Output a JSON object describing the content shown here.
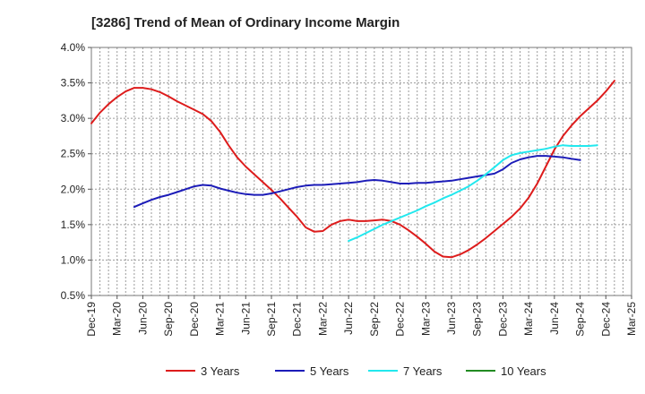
{
  "chart_data": {
    "type": "line",
    "title": "[3286]  Trend of Mean of Ordinary Income Margin",
    "xlabel": "",
    "ylabel": "",
    "ylim": [
      0.5,
      4.0
    ],
    "y_ticks": [
      "0.5%",
      "1.0%",
      "1.5%",
      "2.0%",
      "2.5%",
      "3.0%",
      "3.5%",
      "4.0%"
    ],
    "y_tick_values": [
      0.5,
      1.0,
      1.5,
      2.0,
      2.5,
      3.0,
      3.5,
      4.0
    ],
    "x_ticks": [
      "Dec-19",
      "Mar-20",
      "Jun-20",
      "Sep-20",
      "Dec-20",
      "Mar-21",
      "Jun-21",
      "Sep-21",
      "Dec-21",
      "Mar-22",
      "Jun-22",
      "Sep-22",
      "Dec-22",
      "Mar-23",
      "Jun-23",
      "Sep-23",
      "Dec-23",
      "Mar-24",
      "Jun-24",
      "Sep-24",
      "Dec-24",
      "Mar-25"
    ],
    "grid": true,
    "legend_position": "bottom",
    "series": [
      {
        "name": "3 Years",
        "color": "#dd1c1c",
        "start_index": 0,
        "values": [
          2.93,
          3.08,
          3.2,
          3.3,
          3.38,
          3.43,
          3.43,
          3.41,
          3.37,
          3.31,
          3.24,
          3.18,
          3.12,
          3.06,
          2.96,
          2.81,
          2.62,
          2.45,
          2.32,
          2.21,
          2.1,
          1.99,
          1.87,
          1.74,
          1.61,
          1.46,
          1.4,
          1.41,
          1.5,
          1.55,
          1.57,
          1.55,
          1.55,
          1.56,
          1.57,
          1.55,
          1.5,
          1.42,
          1.33,
          1.23,
          1.12,
          1.05,
          1.04,
          1.08,
          1.14,
          1.22,
          1.31,
          1.41,
          1.51,
          1.61,
          1.73,
          1.88,
          2.08,
          2.32,
          2.56,
          2.75,
          2.9,
          3.03,
          3.14,
          3.25,
          3.38,
          3.53
        ]
      },
      {
        "name": "5 Years",
        "color": "#1c1cb8",
        "start_index": 5,
        "values": [
          1.75,
          1.8,
          1.85,
          1.89,
          1.92,
          1.96,
          2.0,
          2.04,
          2.06,
          2.05,
          2.01,
          1.98,
          1.95,
          1.93,
          1.92,
          1.92,
          1.94,
          1.97,
          2.0,
          2.03,
          2.05,
          2.06,
          2.06,
          2.07,
          2.08,
          2.09,
          2.1,
          2.12,
          2.13,
          2.12,
          2.1,
          2.08,
          2.08,
          2.09,
          2.09,
          2.1,
          2.11,
          2.12,
          2.14,
          2.16,
          2.18,
          2.2,
          2.22,
          2.28,
          2.37,
          2.42,
          2.45,
          2.47,
          2.47,
          2.46,
          2.45,
          2.43,
          2.41
        ]
      },
      {
        "name": "7 Years",
        "color": "#22e8ee",
        "start_index": 30,
        "values": [
          1.27,
          1.32,
          1.38,
          1.44,
          1.5,
          1.55,
          1.6,
          1.65,
          1.7,
          1.76,
          1.81,
          1.87,
          1.92,
          1.98,
          2.04,
          2.12,
          2.21,
          2.31,
          2.41,
          2.48,
          2.51,
          2.53,
          2.55,
          2.57,
          2.6,
          2.62,
          2.61,
          2.61,
          2.61,
          2.62
        ]
      },
      {
        "name": "10 Years",
        "color": "#228b22",
        "start_index": 0,
        "values": []
      }
    ]
  }
}
